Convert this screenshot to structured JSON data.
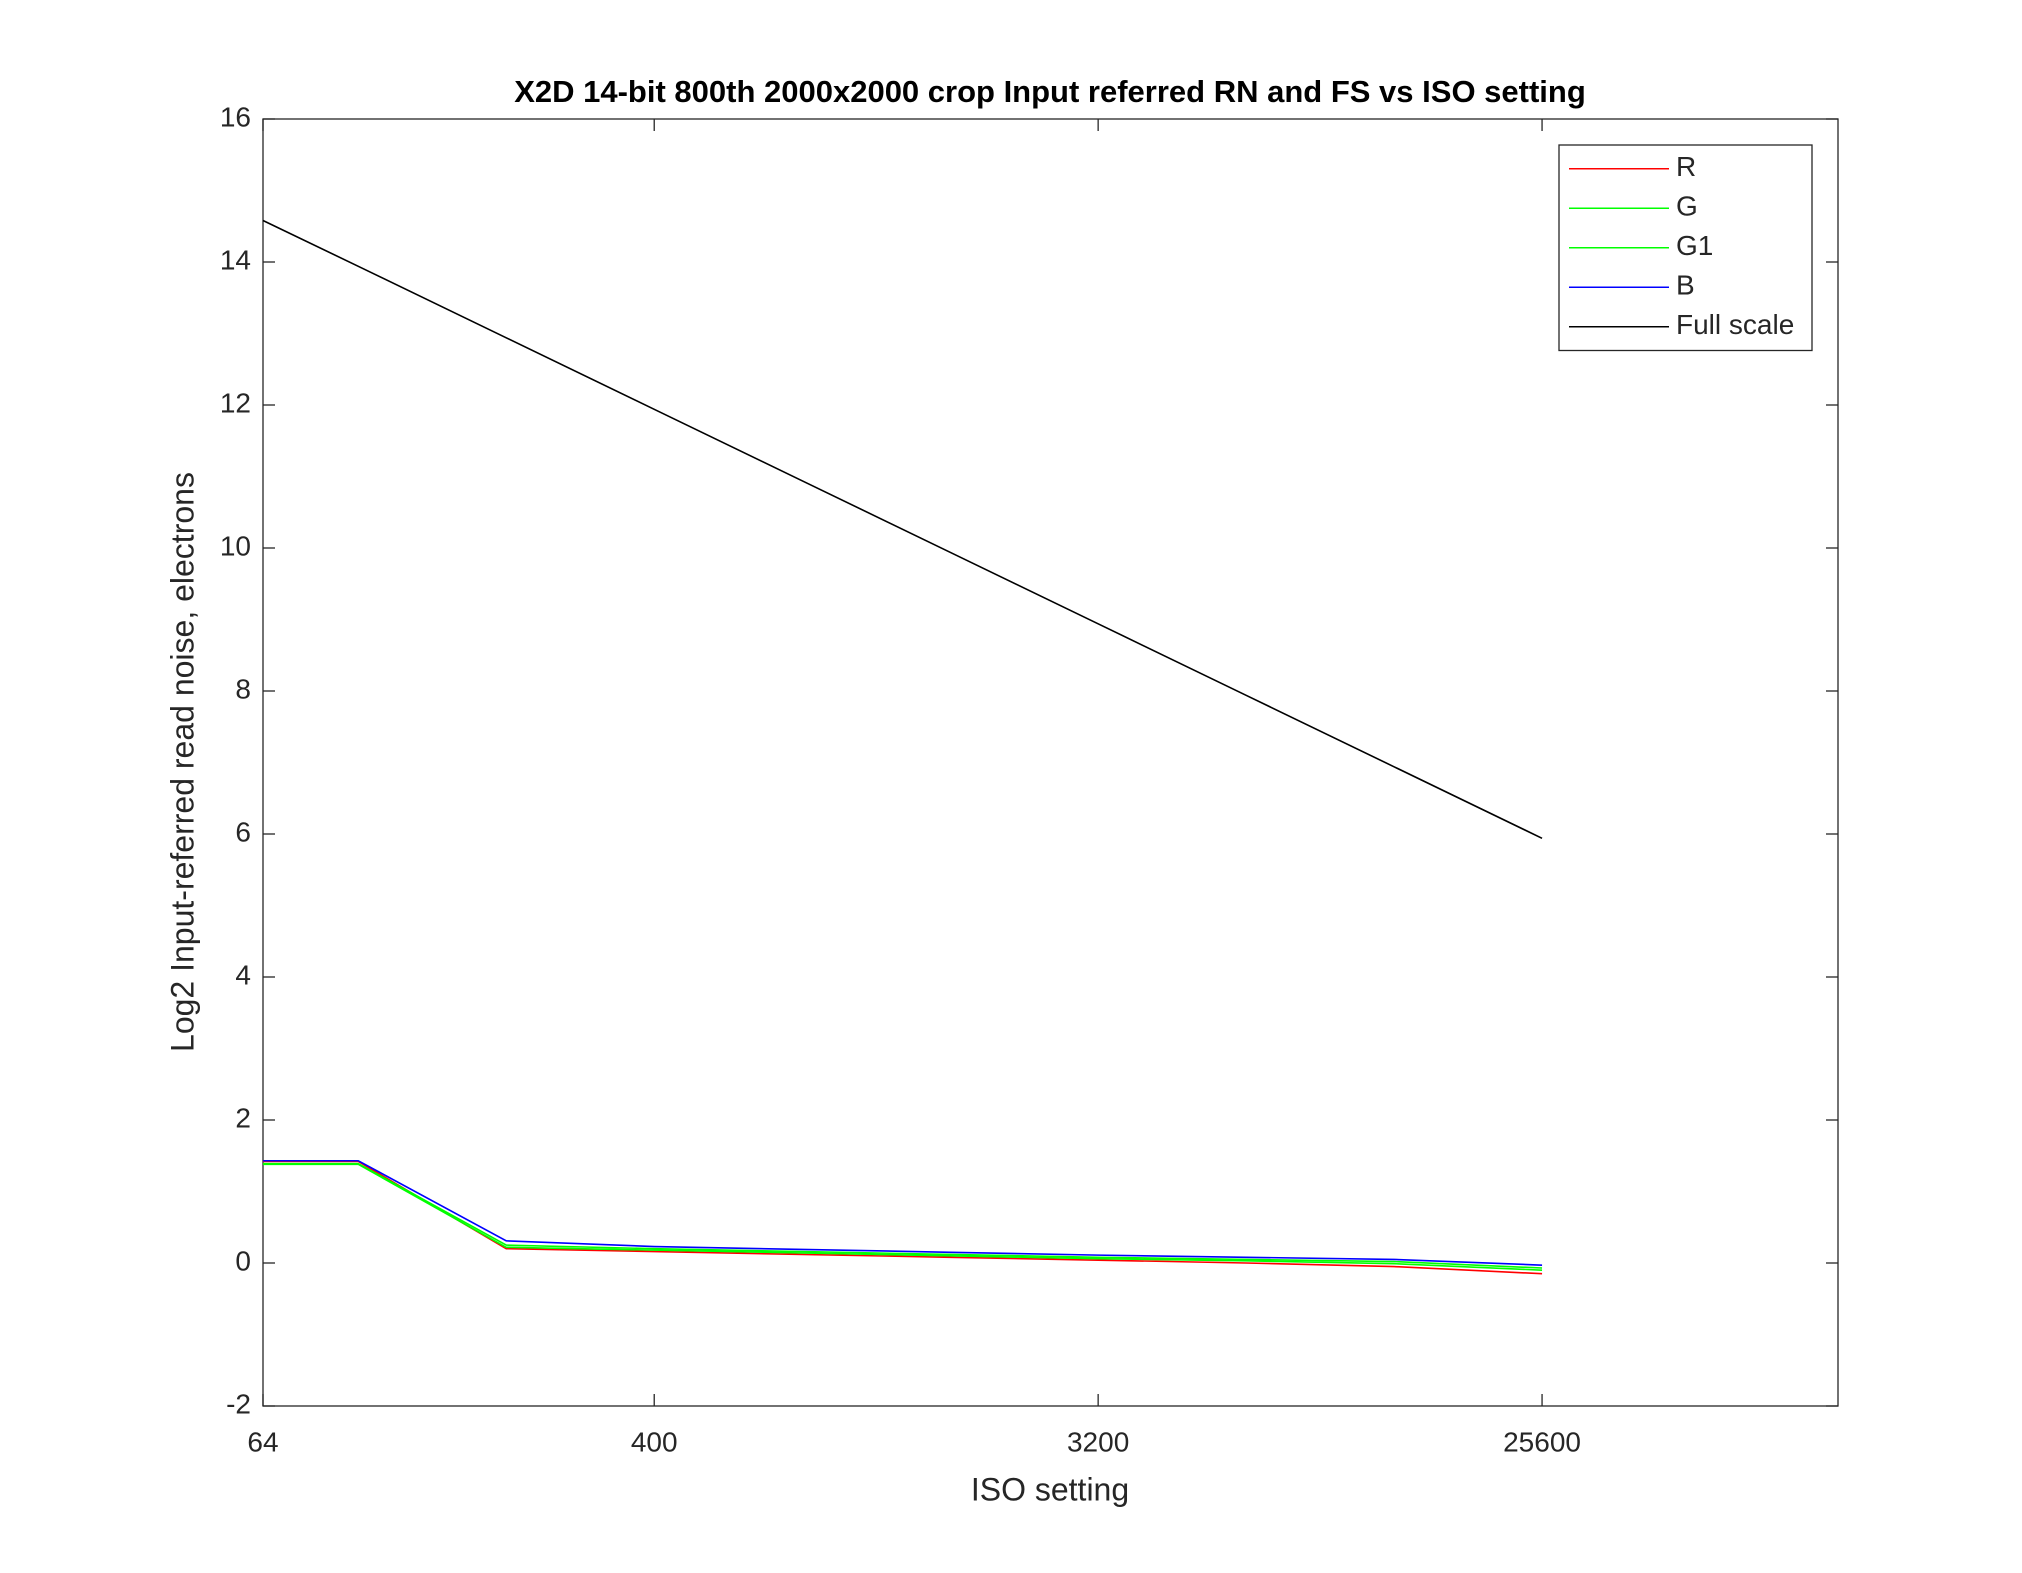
{
  "chart_data": {
    "type": "line",
    "title": "X2D 14-bit 800th 2000x2000 crop Input referred RN and FS vs ISO setting",
    "xlabel": "ISO setting",
    "ylabel": "Log2 Input-referred read noise, electrons",
    "x": [
      64,
      100,
      200,
      400,
      800,
      1600,
      3200,
      6400,
      12800,
      25600
    ],
    "xscale": "log",
    "xlim": [
      64,
      102400
    ],
    "xticks": [
      64,
      400,
      3200,
      25600
    ],
    "ylim": [
      -2,
      16
    ],
    "yticks": [
      -2,
      0,
      2,
      4,
      6,
      8,
      10,
      12,
      14,
      16
    ],
    "legend": "northeast",
    "series": [
      {
        "name": "R",
        "color": "#ff0000",
        "values": [
          1.42,
          1.42,
          0.2,
          0.16,
          0.12,
          0.08,
          0.04,
          0.0,
          -0.05,
          -0.15
        ]
      },
      {
        "name": "G",
        "color": "#00ff00",
        "values": [
          1.38,
          1.38,
          0.22,
          0.18,
          0.14,
          0.1,
          0.06,
          0.03,
          -0.01,
          -0.1
        ]
      },
      {
        "name": "G1",
        "color": "#00ff00",
        "values": [
          1.39,
          1.39,
          0.25,
          0.2,
          0.16,
          0.12,
          0.08,
          0.05,
          0.02,
          -0.07
        ]
      },
      {
        "name": "B",
        "color": "#0000ff",
        "values": [
          1.43,
          1.43,
          0.31,
          0.23,
          0.19,
          0.15,
          0.11,
          0.08,
          0.05,
          -0.03
        ]
      },
      {
        "name": "Full scale",
        "color": "#000000",
        "values": [
          14.58,
          13.94,
          12.94,
          11.94,
          10.94,
          9.94,
          8.94,
          7.94,
          6.94,
          5.94
        ]
      }
    ]
  }
}
